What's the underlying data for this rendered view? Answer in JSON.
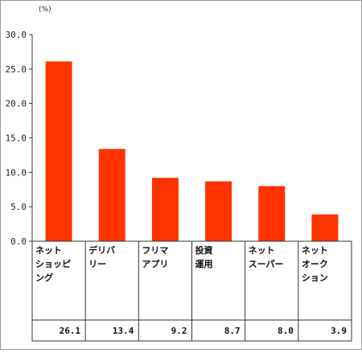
{
  "chart_data": {
    "type": "bar",
    "unit_label": "(%)",
    "categories": [
      [
        "ネット",
        "ショッピ",
        "ング"
      ],
      [
        "デリバ",
        "リー"
      ],
      [
        "フリマ",
        "アプリ"
      ],
      [
        "投資",
        "運用"
      ],
      [
        "ネット",
        "スーパー"
      ],
      [
        "ネット",
        "オーク",
        "ション"
      ]
    ],
    "values": [
      26.1,
      13.4,
      9.2,
      8.7,
      8.0,
      3.9
    ],
    "value_labels": [
      "26.1",
      "13.4",
      "9.2",
      "8.7",
      "8.0",
      "3.9"
    ],
    "ylim": [
      0,
      30
    ],
    "yticks": [
      "0.0",
      "5.0",
      "10.0",
      "15.0",
      "20.0",
      "25.0",
      "30.0"
    ],
    "bar_color": "#ff3300",
    "grid": false
  }
}
